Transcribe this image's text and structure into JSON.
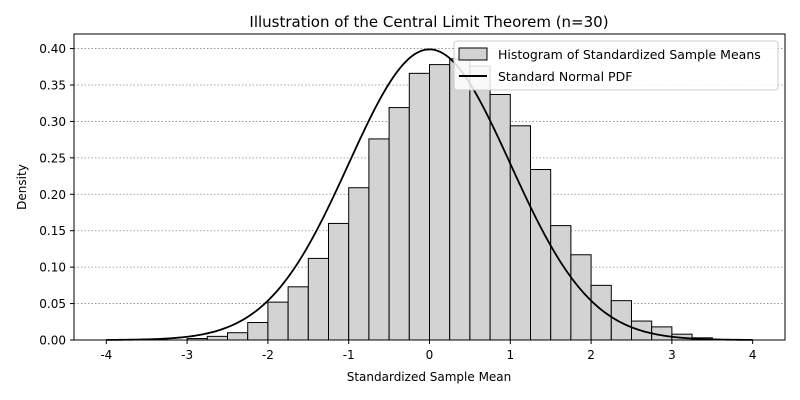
{
  "chart_data": {
    "type": "bar",
    "title": "Illustration of the Central Limit Theorem (n=30)",
    "xlabel": "Standardized Sample Mean",
    "ylabel": "Density",
    "xlim": [
      -4.4,
      4.4
    ],
    "ylim": [
      0,
      0.42
    ],
    "xticks": [
      -4,
      -3,
      -2,
      -1,
      0,
      1,
      2,
      3,
      4
    ],
    "xtick_labels": [
      "-4",
      "-3",
      "-2",
      "-1",
      "0",
      "1",
      "2",
      "3",
      "4"
    ],
    "yticks": [
      0.0,
      0.05,
      0.1,
      0.15,
      0.2,
      0.25,
      0.3,
      0.35,
      0.4
    ],
    "ytick_labels": [
      "0.00",
      "0.05",
      "0.10",
      "0.15",
      "0.20",
      "0.25",
      "0.30",
      "0.35",
      "0.40"
    ],
    "grid": "y-dotted",
    "legend_position": "top-right",
    "histogram": {
      "name": "Histogram of Standardized Sample Means",
      "color": "#d3d3d3",
      "edge_color": "#000000",
      "bin_width": 0.25,
      "bins": [
        {
          "x0": -3.0,
          "density": 0.002
        },
        {
          "x0": -2.75,
          "density": 0.005
        },
        {
          "x0": -2.5,
          "density": 0.01
        },
        {
          "x0": -2.25,
          "density": 0.024
        },
        {
          "x0": -2.0,
          "density": 0.052
        },
        {
          "x0": -1.75,
          "density": 0.073
        },
        {
          "x0": -1.5,
          "density": 0.112
        },
        {
          "x0": -1.25,
          "density": 0.16
        },
        {
          "x0": -1.0,
          "density": 0.209
        },
        {
          "x0": -0.75,
          "density": 0.276
        },
        {
          "x0": -0.5,
          "density": 0.319
        },
        {
          "x0": -0.25,
          "density": 0.366
        },
        {
          "x0": 0.0,
          "density": 0.378
        },
        {
          "x0": 0.25,
          "density": 0.386
        },
        {
          "x0": 0.5,
          "density": 0.376
        },
        {
          "x0": 0.75,
          "density": 0.337
        },
        {
          "x0": 1.0,
          "density": 0.294
        },
        {
          "x0": 1.25,
          "density": 0.234
        },
        {
          "x0": 1.5,
          "density": 0.157
        },
        {
          "x0": 1.75,
          "density": 0.117
        },
        {
          "x0": 2.0,
          "density": 0.075
        },
        {
          "x0": 2.25,
          "density": 0.054
        },
        {
          "x0": 2.5,
          "density": 0.026
        },
        {
          "x0": 2.75,
          "density": 0.018
        },
        {
          "x0": 3.0,
          "density": 0.008
        },
        {
          "x0": 3.25,
          "density": 0.003
        }
      ]
    },
    "curve": {
      "name": "Standard Normal PDF",
      "color": "#000000",
      "function": "standard_normal_pdf",
      "x_range": [
        -4,
        4
      ]
    }
  }
}
